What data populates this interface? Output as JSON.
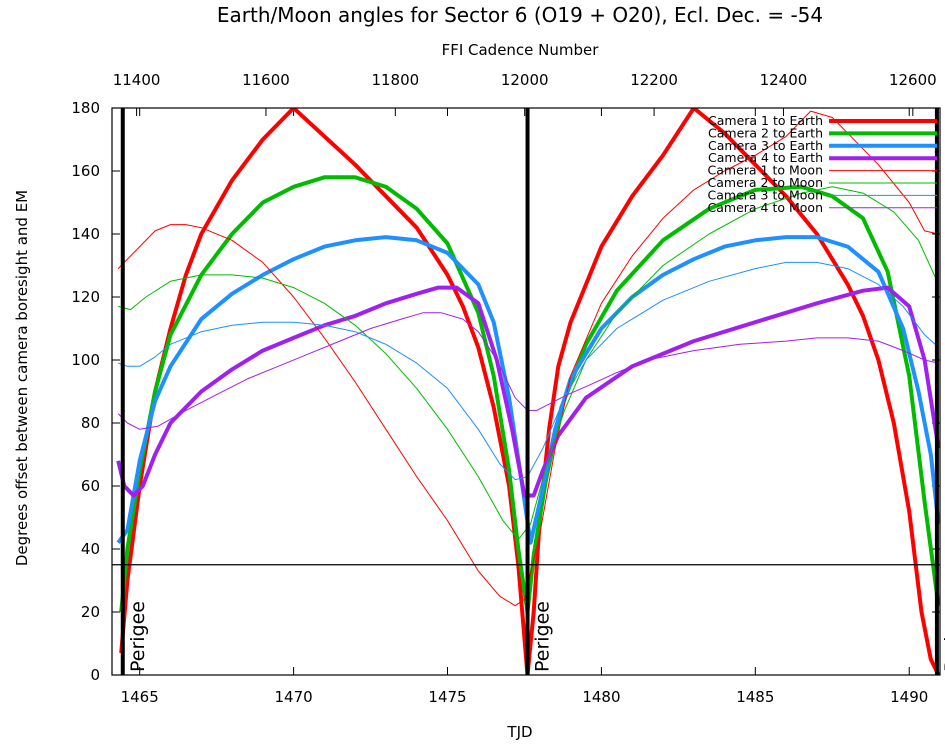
{
  "chart_data": {
    "type": "line",
    "title": "Earth/Moon angles for Sector 6 (O19 + O20), Ecl. Dec. = -54",
    "x2label": "FFI Cadence Number",
    "xlabel": "TJD",
    "ylabel": "Degrees offset between camera boresight and EM",
    "xlim": [
      1464.1,
      1491.0
    ],
    "ylim": [
      0,
      180
    ],
    "x2lim": [
      11362,
      12642
    ],
    "xticks": [
      1465,
      1470,
      1475,
      1480,
      1485,
      1490
    ],
    "yticks": [
      0,
      20,
      40,
      60,
      80,
      100,
      120,
      140,
      160,
      180
    ],
    "x2ticks": [
      11400,
      11600,
      11800,
      12000,
      12200,
      12400,
      12600
    ],
    "grid": false,
    "legend_position": "top-right",
    "threshold_line": 35,
    "perigee_lines": [
      1464.45,
      1477.6,
      1490.9
    ],
    "perigee_label": "Perigee",
    "series": [
      {
        "name": "Camera 1 to Earth",
        "color": "#ff0000",
        "width": 4,
        "x": [
          1464.4,
          1464.6,
          1465.0,
          1465.5,
          1466.0,
          1466.5,
          1467.0,
          1468.0,
          1469.0,
          1470.0,
          1471.0,
          1472.0,
          1473.0,
          1474.0,
          1475.0,
          1475.5,
          1476.0,
          1476.5,
          1477.0,
          1477.3,
          1477.6,
          1477.8,
          1478.0,
          1478.3,
          1478.6,
          1479.0,
          1479.5,
          1480.0,
          1481.0,
          1482.0,
          1483.0,
          1484.0,
          1485.0,
          1486.0,
          1487.0,
          1488.0,
          1488.5,
          1489.0,
          1489.5,
          1490.0,
          1490.4,
          1490.7,
          1490.95
        ],
        "y": [
          7,
          30,
          60,
          90,
          110,
          127,
          140,
          157,
          170,
          180,
          171,
          162,
          152,
          142,
          127,
          117,
          104,
          85,
          60,
          35,
          0,
          20,
          50,
          78,
          98,
          112,
          124,
          136,
          152,
          165,
          180,
          172,
          162,
          152,
          140,
          124,
          114,
          100,
          80,
          52,
          20,
          5,
          0
        ]
      },
      {
        "name": "Camera 2 to Earth",
        "color": "#00bb00",
        "width": 4,
        "x": [
          1464.4,
          1464.6,
          1465.0,
          1465.5,
          1466.0,
          1467.0,
          1468.0,
          1469.0,
          1470.0,
          1471.0,
          1472.0,
          1473.0,
          1474.0,
          1475.0,
          1476.0,
          1476.5,
          1477.0,
          1477.3,
          1477.6,
          1477.8,
          1478.2,
          1478.7,
          1479.5,
          1480.5,
          1482.0,
          1483.5,
          1485.0,
          1486.5,
          1487.5,
          1488.5,
          1489.3,
          1490.0,
          1490.5,
          1490.95
        ],
        "y": [
          20,
          40,
          65,
          90,
          108,
          127,
          140,
          150,
          155,
          158,
          158,
          155,
          148,
          137,
          115,
          95,
          65,
          40,
          20,
          38,
          62,
          85,
          105,
          122,
          138,
          148,
          154,
          155,
          152,
          145,
          128,
          95,
          55,
          22
        ]
      },
      {
        "name": "Camera 3 to Earth",
        "color": "#1e90ff",
        "width": 4,
        "x": [
          1464.3,
          1464.6,
          1465.0,
          1465.5,
          1466.0,
          1467.0,
          1468.0,
          1469.0,
          1470.0,
          1471.0,
          1472.0,
          1473.0,
          1474.0,
          1475.0,
          1476.0,
          1476.5,
          1477.0,
          1477.4,
          1477.7,
          1478.0,
          1478.5,
          1479.0,
          1480.0,
          1481.0,
          1482.0,
          1483.0,
          1484.0,
          1485.0,
          1486.0,
          1487.0,
          1488.0,
          1489.0,
          1489.8,
          1490.3,
          1490.7,
          1490.95
        ],
        "y": [
          42,
          46,
          68,
          87,
          98,
          113,
          121,
          127,
          132,
          136,
          138,
          139,
          138,
          134,
          124,
          112,
          88,
          62,
          42,
          55,
          78,
          94,
          110,
          120,
          127,
          132,
          136,
          138,
          139,
          139,
          136,
          128,
          110,
          90,
          70,
          48
        ]
      },
      {
        "name": "Camera 4 to Earth",
        "color": "#a020f0",
        "width": 4,
        "x": [
          1464.3,
          1464.5,
          1464.8,
          1465.1,
          1465.5,
          1466.0,
          1467.0,
          1468.0,
          1469.0,
          1470.0,
          1471.0,
          1472.0,
          1473.0,
          1474.0,
          1474.7,
          1475.3,
          1476.0,
          1476.6,
          1477.1,
          1477.5,
          1477.8,
          1478.1,
          1478.6,
          1479.5,
          1481.0,
          1483.0,
          1485.0,
          1487.0,
          1488.5,
          1489.3,
          1490.0,
          1490.5,
          1490.95
        ],
        "y": [
          68,
          60,
          57,
          60,
          70,
          80,
          90,
          97,
          103,
          107,
          111,
          114,
          118,
          121,
          123,
          123,
          118,
          100,
          78,
          57,
          57,
          65,
          76,
          88,
          98,
          106,
          112,
          118,
          122,
          123,
          117,
          100,
          72
        ]
      },
      {
        "name": "Camera 1 to Moon",
        "color": "#ff0000",
        "width": 1,
        "x": [
          1464.3,
          1465.0,
          1465.5,
          1466.0,
          1466.5,
          1467.0,
          1468.0,
          1469.0,
          1470.0,
          1471.0,
          1472.0,
          1473.0,
          1474.0,
          1475.0,
          1476.0,
          1476.7,
          1477.2,
          1477.5,
          1478.0,
          1478.5,
          1479.0,
          1480.0,
          1481.0,
          1482.0,
          1483.0,
          1484.0,
          1485.0,
          1486.0,
          1486.8,
          1487.5,
          1488.0,
          1489.0,
          1490.0,
          1490.5,
          1490.95
        ],
        "y": [
          129,
          136,
          141,
          143,
          143,
          142,
          138,
          131,
          120,
          107,
          93,
          78,
          63,
          49,
          33,
          25,
          22,
          24,
          45,
          72,
          95,
          118,
          133,
          145,
          154,
          160,
          165,
          171,
          179,
          177,
          172,
          162,
          150,
          141,
          140
        ]
      },
      {
        "name": "Camera 2 to Moon",
        "color": "#00bb00",
        "width": 1,
        "x": [
          1464.3,
          1464.7,
          1465.2,
          1466.0,
          1467.0,
          1468.0,
          1469.0,
          1470.0,
          1471.0,
          1472.0,
          1473.0,
          1474.0,
          1475.0,
          1476.0,
          1476.8,
          1477.3,
          1477.7,
          1478.2,
          1478.8,
          1479.5,
          1480.5,
          1482.0,
          1483.5,
          1485.0,
          1486.5,
          1487.5,
          1488.5,
          1489.5,
          1490.3,
          1490.95
        ],
        "y": [
          117,
          116,
          120,
          125,
          127,
          127,
          126,
          123,
          118,
          111,
          102,
          91,
          78,
          63,
          49,
          43,
          48,
          66,
          84,
          100,
          115,
          130,
          140,
          148,
          153,
          155,
          153,
          147,
          138,
          124
        ]
      },
      {
        "name": "Camera 3 to Moon",
        "color": "#1e90ff",
        "width": 1,
        "x": [
          1464.3,
          1464.6,
          1465.0,
          1465.5,
          1466.0,
          1467.0,
          1468.0,
          1469.0,
          1470.0,
          1471.0,
          1472.0,
          1473.0,
          1474.0,
          1475.0,
          1476.0,
          1476.7,
          1477.2,
          1477.6,
          1478.1,
          1478.8,
          1479.5,
          1480.5,
          1482.0,
          1483.5,
          1485.0,
          1486.0,
          1487.0,
          1488.0,
          1489.0,
          1489.8,
          1490.5,
          1490.95
        ],
        "y": [
          99,
          98,
          98,
          101,
          105,
          109,
          111,
          112,
          112,
          111,
          109,
          105,
          99,
          91,
          78,
          67,
          62,
          63,
          72,
          88,
          100,
          110,
          119,
          125,
          129,
          131,
          131,
          129,
          124,
          117,
          108,
          104
        ]
      },
      {
        "name": "Camera 4 to Moon",
        "color": "#a020f0",
        "width": 1,
        "x": [
          1464.3,
          1464.6,
          1465.0,
          1465.6,
          1466.5,
          1467.5,
          1468.5,
          1469.5,
          1470.5,
          1471.5,
          1472.5,
          1473.5,
          1474.2,
          1474.8,
          1475.5,
          1476.0,
          1476.6,
          1477.2,
          1477.6,
          1477.9,
          1478.3,
          1478.9,
          1479.6,
          1480.5,
          1481.5,
          1483.0,
          1484.5,
          1486.0,
          1487.0,
          1488.0,
          1489.0,
          1489.8,
          1490.5,
          1490.95
        ],
        "y": [
          83,
          80,
          78,
          79,
          84,
          89,
          94,
          98,
          102,
          106,
          110,
          113,
          115,
          115,
          113,
          109,
          100,
          88,
          84,
          84,
          86,
          89,
          92,
          96,
          100,
          103,
          105,
          106,
          107,
          107,
          106,
          103,
          100,
          99
        ]
      }
    ]
  }
}
